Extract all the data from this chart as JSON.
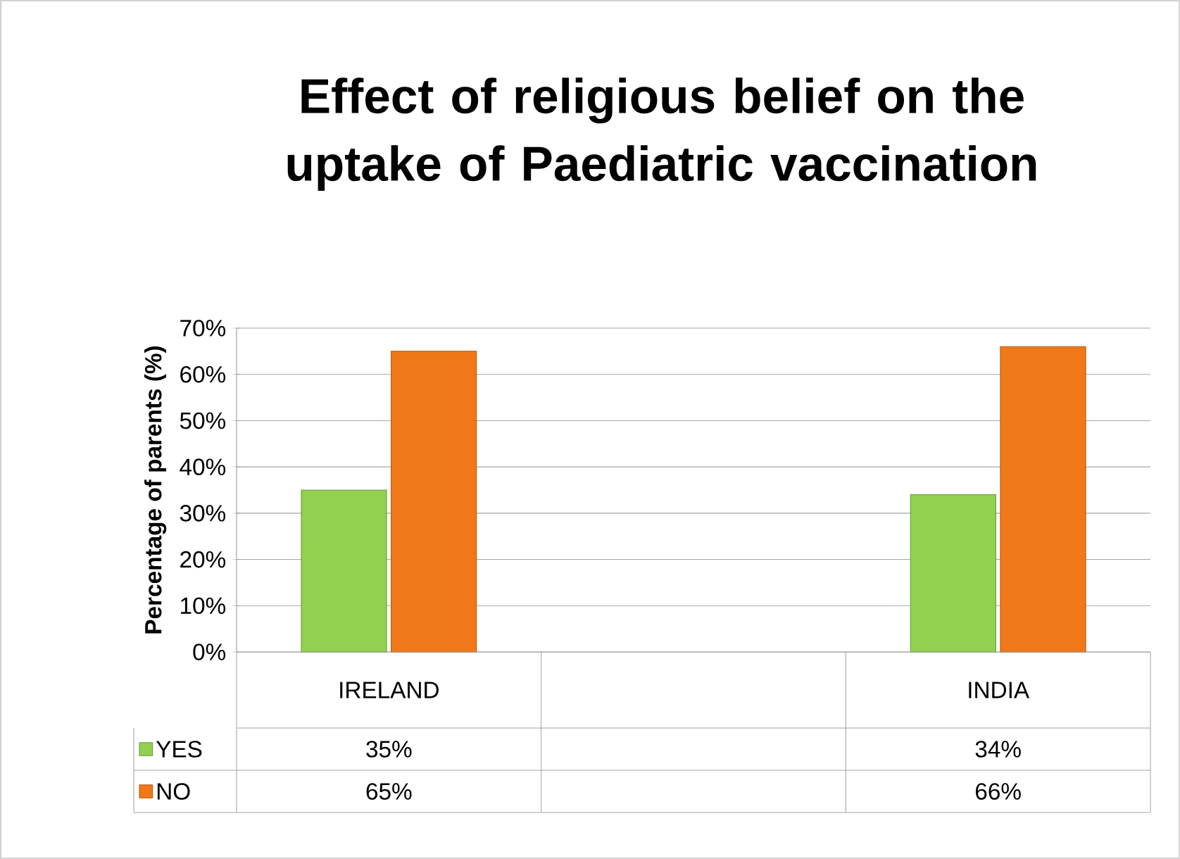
{
  "chart_data": {
    "type": "bar",
    "title": "Effect of religious belief on the uptake of Paediatric vaccination",
    "ylabel": "Percentage of parents (%)",
    "categories": [
      "IRELAND",
      null,
      "INDIA"
    ],
    "series": [
      {
        "name": "YES",
        "color": "#92d050",
        "values": [
          35,
          null,
          34
        ],
        "value_labels": [
          "35%",
          null,
          "34%"
        ]
      },
      {
        "name": "NO",
        "color": "#f07818",
        "values": [
          65,
          null,
          66
        ],
        "value_labels": [
          "65%",
          null,
          "66%"
        ]
      }
    ],
    "ylim": [
      0,
      70
    ],
    "yticks": [
      {
        "value": 0,
        "label": "0%"
      },
      {
        "value": 10,
        "label": "10%"
      },
      {
        "value": 20,
        "label": "20%"
      },
      {
        "value": 30,
        "label": "30%"
      },
      {
        "value": 40,
        "label": "40%"
      },
      {
        "value": 50,
        "label": "50%"
      },
      {
        "value": 60,
        "label": "60%"
      },
      {
        "value": 70,
        "label": "70%"
      }
    ],
    "grid": "y",
    "legend": "bottom"
  }
}
